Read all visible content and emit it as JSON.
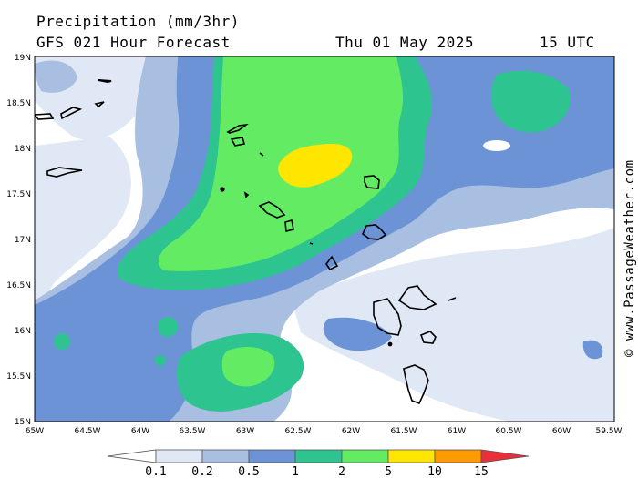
{
  "header": {
    "title": "Precipitation (mm/3hr)",
    "subtitle": "GFS 021 Hour Forecast",
    "date": "Thu 01 May 2025",
    "time": "15 UTC"
  },
  "watermark": "© www.PassageWeather.com",
  "axes": {
    "lat_labels": [
      "19N",
      "18.5N",
      "18N",
      "17.5N",
      "17N",
      "16.5N",
      "16N",
      "15.5N",
      "15N"
    ],
    "lon_labels": [
      "65W",
      "64.5W",
      "64W",
      "63.5W",
      "63W",
      "62.5W",
      "62W",
      "61.5W",
      "61W",
      "60.5W",
      "60W",
      "59.5W"
    ]
  },
  "legend": {
    "ticks": [
      "0.1",
      "0.2",
      "0.5",
      "1",
      "2",
      "5",
      "10",
      "15"
    ],
    "colors": [
      "#ffffff",
      "#e1e8f5",
      "#a9bfe1",
      "#6b93d6",
      "#2ec48f",
      "#63ec63",
      "#ffe600",
      "#ff9a00",
      "#e8303a"
    ]
  },
  "colors": {
    "level_01": "#e1e8f5",
    "level_02": "#a9bfe1",
    "level_05": "#6b93d6",
    "level_1": "#2ec48f",
    "level_2": "#63ec63",
    "level_5": "#ffe600"
  }
}
